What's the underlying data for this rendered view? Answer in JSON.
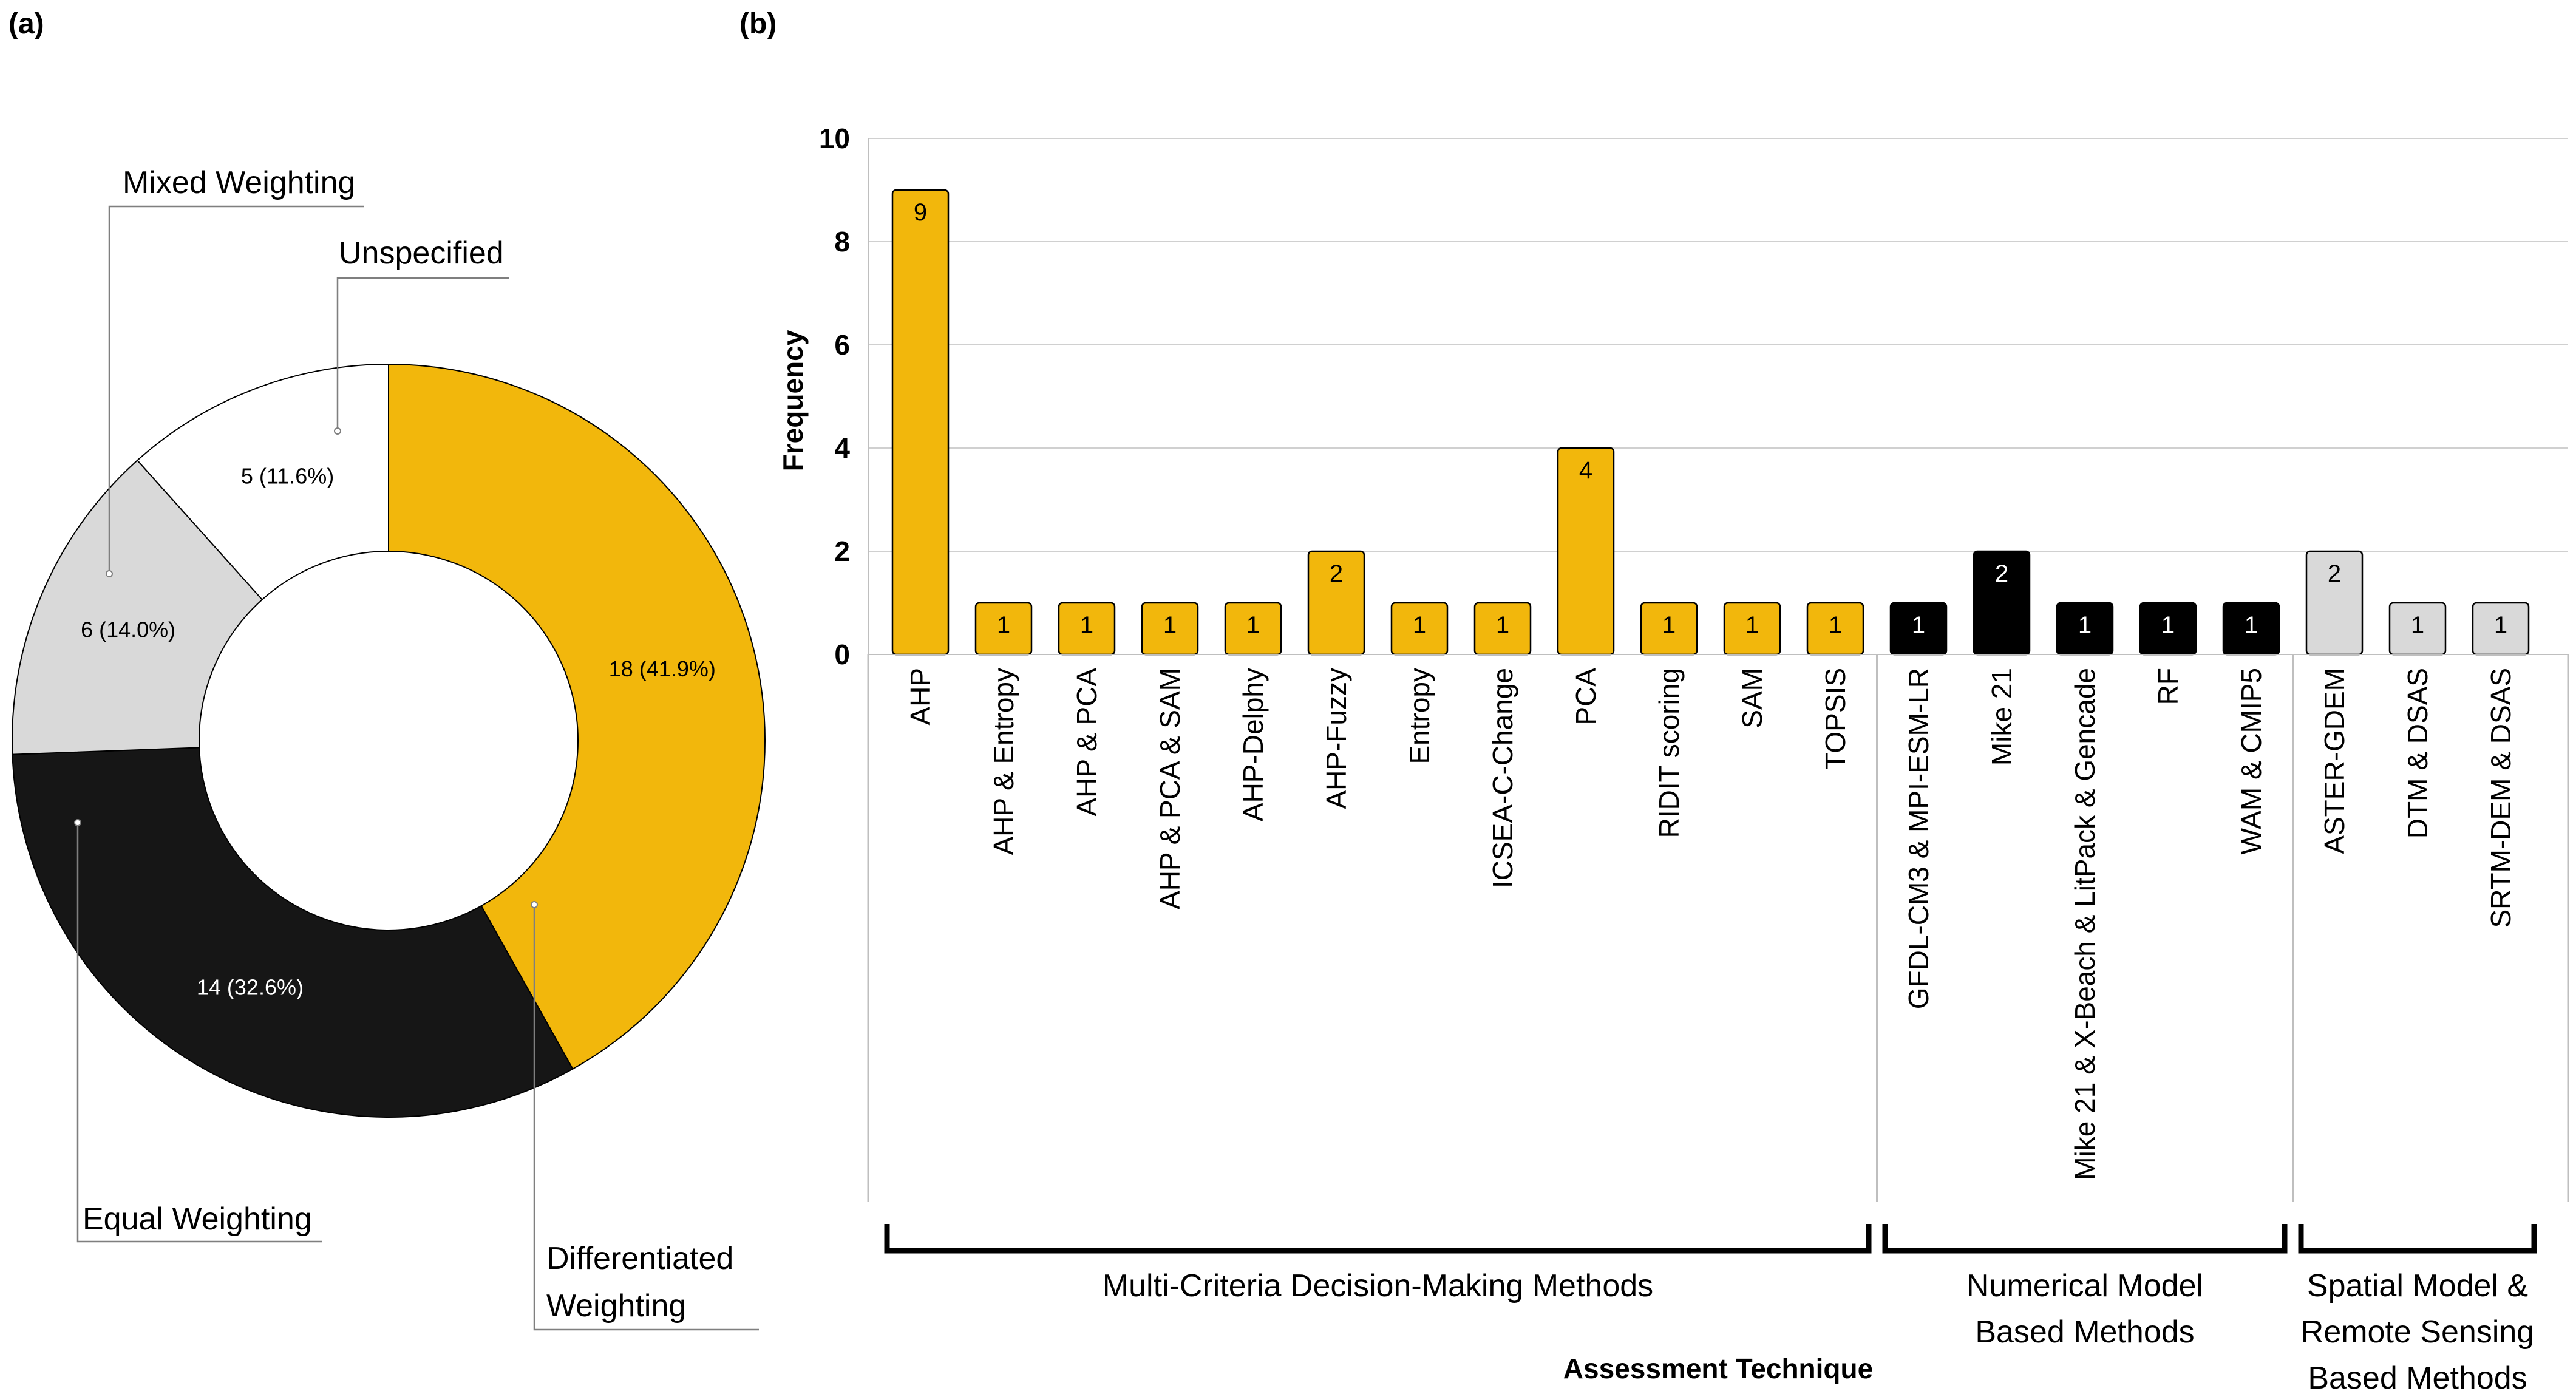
{
  "panel_a_label": "(a)",
  "panel_b_label": "(b)",
  "chart_data": [
    {
      "type": "pie",
      "donut": true,
      "slices": [
        {
          "name": "Differentiated Weighting",
          "callout": [
            "Differentiated",
            "Weighting"
          ],
          "value": 18,
          "label": "18 (41.9%)",
          "color": "#F2B70C",
          "label_color": "#000000"
        },
        {
          "name": "Equal Weighting",
          "callout": [
            "Equal Weighting"
          ],
          "value": 14,
          "label": "14 (32.6%)",
          "color": "#161616",
          "label_color": "#ffffff"
        },
        {
          "name": "Mixed Weighting",
          "callout": [
            "Mixed Weighting"
          ],
          "value": 6,
          "label": "6 (14.0%)",
          "color": "#D9D9D9",
          "label_color": "#000000"
        },
        {
          "name": "Unspecified",
          "callout": [
            "Unspecified"
          ],
          "value": 5,
          "label": "5 (11.6%)",
          "color": "#FFFFFF",
          "label_color": "#000000"
        }
      ]
    },
    {
      "type": "bar",
      "xlabel": "Assessment Technique",
      "ylabel": "Frequency",
      "ylim": [
        0,
        10
      ],
      "yticks": [
        0,
        2,
        4,
        6,
        8,
        10
      ],
      "grid": true,
      "categories": [
        "AHP",
        "AHP & Entropy",
        "AHP & PCA",
        "AHP & PCA & SAM",
        "AHP-Delphy",
        "AHP-Fuzzy",
        "Entropy",
        "ICSEA-C-Change",
        "PCA",
        "RIDIT scoring",
        "SAM",
        "TOPSIS",
        "GFDL-CM3 & MPI-ESM-LR",
        "Mike 21",
        "Mike 21 & X-Beach & LitPack & Gencade",
        "RF",
        "WAM & CMIP5",
        "ASTER-GDEM",
        "DTM & DSAS",
        "SRTM-DEM & DSAS"
      ],
      "values": [
        9,
        1,
        1,
        1,
        1,
        2,
        1,
        1,
        4,
        1,
        1,
        1,
        1,
        2,
        1,
        1,
        1,
        2,
        1,
        1
      ],
      "groups": [
        {
          "name": "Multi-Criteria Decision-Making Methods",
          "lines": [
            "Multi-Criteria Decision-Making Methods"
          ],
          "start": 0,
          "end": 11,
          "color": "#F2B70C",
          "label_color": "#000000"
        },
        {
          "name": "Numerical Model Based Methods",
          "lines": [
            "Numerical Model",
            "Based Methods"
          ],
          "start": 12,
          "end": 16,
          "color": "#000000",
          "label_color": "#ffffff"
        },
        {
          "name": "Spatial Model & Remote Sensing Based Methods",
          "lines": [
            "Spatial Model &",
            "Remote Sensing",
            "Based Methods"
          ],
          "start": 17,
          "end": 19,
          "color": "#D9D9D9",
          "label_color": "#000000"
        }
      ]
    }
  ]
}
